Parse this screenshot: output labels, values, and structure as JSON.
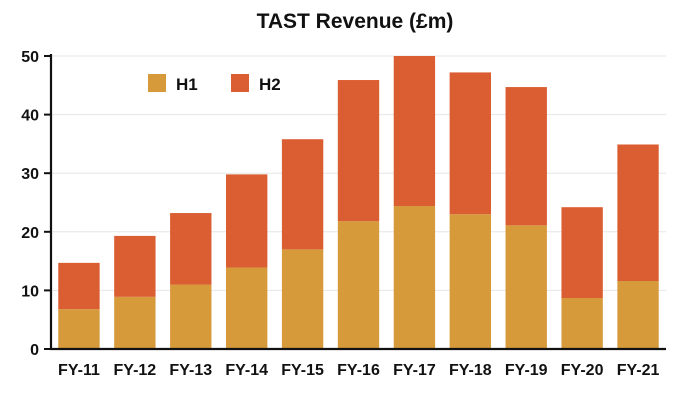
{
  "chart_data": {
    "type": "bar",
    "stacked": true,
    "title": "TAST Revenue (£m)",
    "xlabel": "",
    "ylabel": "",
    "ylim": [
      0,
      50
    ],
    "yticks": [
      0,
      10,
      20,
      30,
      40,
      50
    ],
    "grid": true,
    "legend": "top-left",
    "categories": [
      "FY-11",
      "FY-12",
      "FY-13",
      "FY-14",
      "FY-15",
      "FY-16",
      "FY-17",
      "FY-18",
      "FY-19",
      "FY-20",
      "FY-21"
    ],
    "series": [
      {
        "name": "H1",
        "color": "#D69A3B",
        "values": [
          6.8,
          8.9,
          11.0,
          13.9,
          17.0,
          21.8,
          24.4,
          23.0,
          21.1,
          8.7,
          11.6
        ]
      },
      {
        "name": "H2",
        "color": "#DB5E33",
        "values": [
          7.9,
          10.4,
          12.2,
          15.9,
          18.8,
          24.1,
          25.6,
          24.2,
          23.6,
          15.5,
          23.3
        ]
      }
    ]
  }
}
